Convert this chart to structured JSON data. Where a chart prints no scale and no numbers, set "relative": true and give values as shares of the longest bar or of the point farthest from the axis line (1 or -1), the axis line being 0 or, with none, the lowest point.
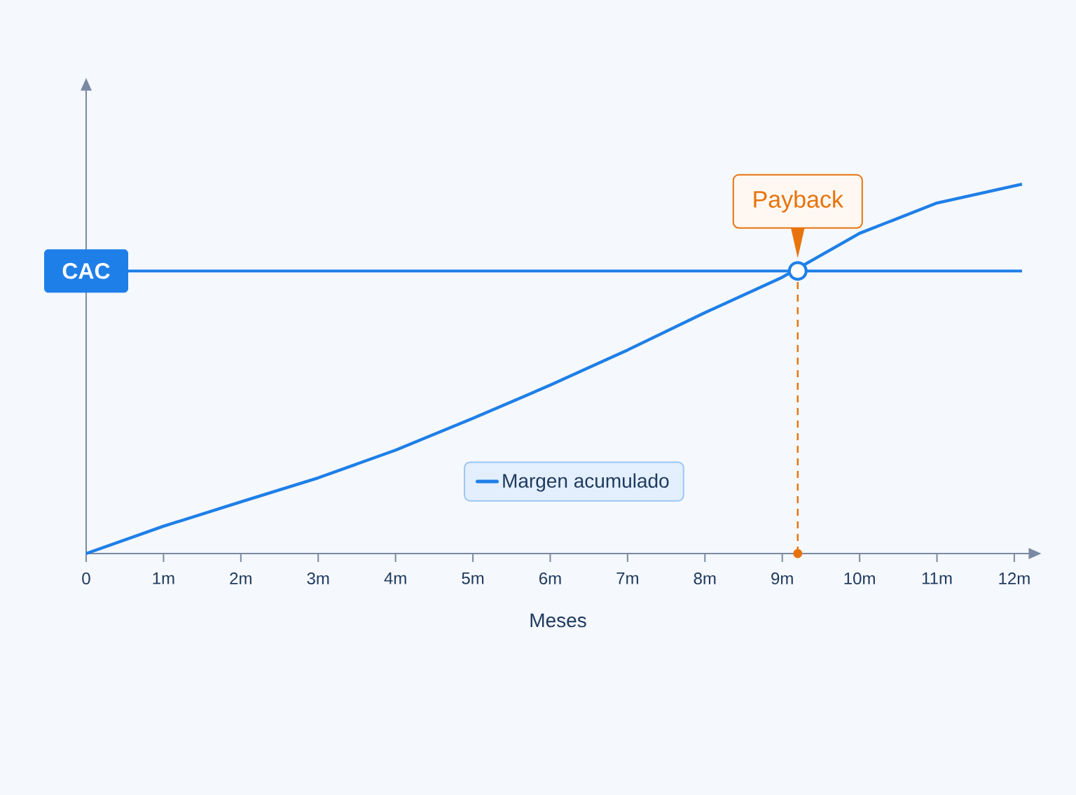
{
  "chart_data": {
    "type": "line",
    "relative": true,
    "xlabel": "Meses",
    "xlim": [
      0,
      12.2
    ],
    "xticks": [
      0,
      {
        "value": 1,
        "label": "1m"
      },
      {
        "value": 2,
        "label": "2m"
      },
      {
        "value": 3,
        "label": "3m"
      },
      {
        "value": 4,
        "label": "4m"
      },
      {
        "value": 5,
        "label": "5m"
      },
      {
        "value": 6,
        "label": "6m"
      },
      {
        "value": 7,
        "label": "7m"
      },
      {
        "value": 8,
        "label": "8m"
      },
      {
        "value": 9,
        "label": "9m"
      },
      {
        "value": 10,
        "label": "10m"
      },
      {
        "value": 11,
        "label": "11m"
      },
      {
        "value": 12,
        "label": "12m"
      }
    ],
    "series": [
      {
        "name": "Margen acumulado",
        "color": "#1e7fe8",
        "x": [
          0,
          1,
          2,
          3,
          4,
          5,
          6,
          7,
          8,
          9,
          10,
          11,
          12.1
        ],
        "values": [
          0,
          0.074,
          0.14,
          0.205,
          0.28,
          0.366,
          0.456,
          0.551,
          0.652,
          0.748,
          0.867,
          0.949,
          1.0
        ]
      }
    ],
    "ref_lines": [
      {
        "axis": "y",
        "value": 0.765,
        "label": "CAC",
        "color": "#1e7fe8"
      },
      {
        "axis": "x",
        "value": 9.2,
        "color": "#e8730c",
        "line_style": "dashed"
      }
    ],
    "annotations": [
      {
        "text": "Payback",
        "x": 9.2,
        "y": 0.765
      }
    ],
    "legend": "bottom"
  }
}
